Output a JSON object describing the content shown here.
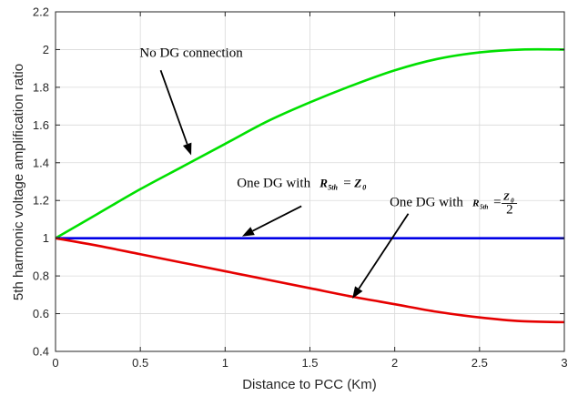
{
  "chart_data": {
    "type": "line",
    "xlabel": "Distance to PCC (Km)",
    "ylabel": "5th harmonic voltage amplification ratio",
    "xlim": [
      0,
      3
    ],
    "ylim": [
      0.4,
      2.2
    ],
    "xticks": [
      0,
      0.5,
      1,
      1.5,
      2,
      2.5,
      3
    ],
    "xtick_labels": [
      "0",
      "0.5",
      "1",
      "1.5",
      "2",
      "2.5",
      "3"
    ],
    "yticks": [
      0.4,
      0.6,
      0.8,
      1,
      1.2,
      1.4,
      1.6,
      1.8,
      2,
      2.2
    ],
    "ytick_labels": [
      "0.4",
      "0.6",
      "0.8",
      "1",
      "1.2",
      "1.4",
      "1.6",
      "1.8",
      "2",
      "2.2"
    ],
    "grid": true,
    "series": [
      {
        "color": "#00e000",
        "x": [
          0,
          0.25,
          0.5,
          0.75,
          1,
          1.25,
          1.5,
          1.75,
          2,
          2.25,
          2.5,
          2.75,
          3
        ],
        "y": [
          1.0,
          1.13,
          1.26,
          1.38,
          1.5,
          1.62,
          1.72,
          1.81,
          1.89,
          1.95,
          1.985,
          2.0,
          2.0
        ]
      },
      {
        "color": "#0000e6",
        "x": [
          0,
          0.5,
          1,
          1.5,
          2,
          2.5,
          3
        ],
        "y": [
          1,
          1,
          1,
          1,
          1,
          1,
          1
        ]
      },
      {
        "color": "#e60000",
        "x": [
          0,
          0.25,
          0.5,
          0.75,
          1,
          1.25,
          1.5,
          1.75,
          2,
          2.25,
          2.5,
          2.75,
          3
        ],
        "y": [
          1.0,
          0.96,
          0.915,
          0.87,
          0.825,
          0.78,
          0.735,
          0.69,
          0.65,
          0.61,
          0.58,
          0.56,
          0.555
        ]
      }
    ],
    "annotations": [
      {
        "text": "No DG connection",
        "anchor": [
          0.8,
          1.96
        ],
        "arrow_from": [
          0.62,
          1.89
        ],
        "arrow_to": [
          0.8,
          1.44
        ]
      },
      {
        "text": "One DG with",
        "math_main": "R",
        "math_sub": "5th",
        "math_rhs_main": "Z",
        "math_rhs_sub": "0",
        "anchor": [
          1.15,
          1.27
        ],
        "arrow_from": [
          1.45,
          1.17
        ],
        "arrow_to": [
          1.1,
          1.01
        ]
      },
      {
        "text": "One DG with",
        "math_main": "R",
        "math_sub": "5th",
        "math_rhs_main": "Z",
        "math_rhs_sub": "0",
        "math_rhs_den": "2",
        "anchor": [
          1.97,
          1.17
        ],
        "arrow_from": [
          2.08,
          1.13
        ],
        "arrow_to": [
          1.75,
          0.68
        ]
      }
    ]
  }
}
